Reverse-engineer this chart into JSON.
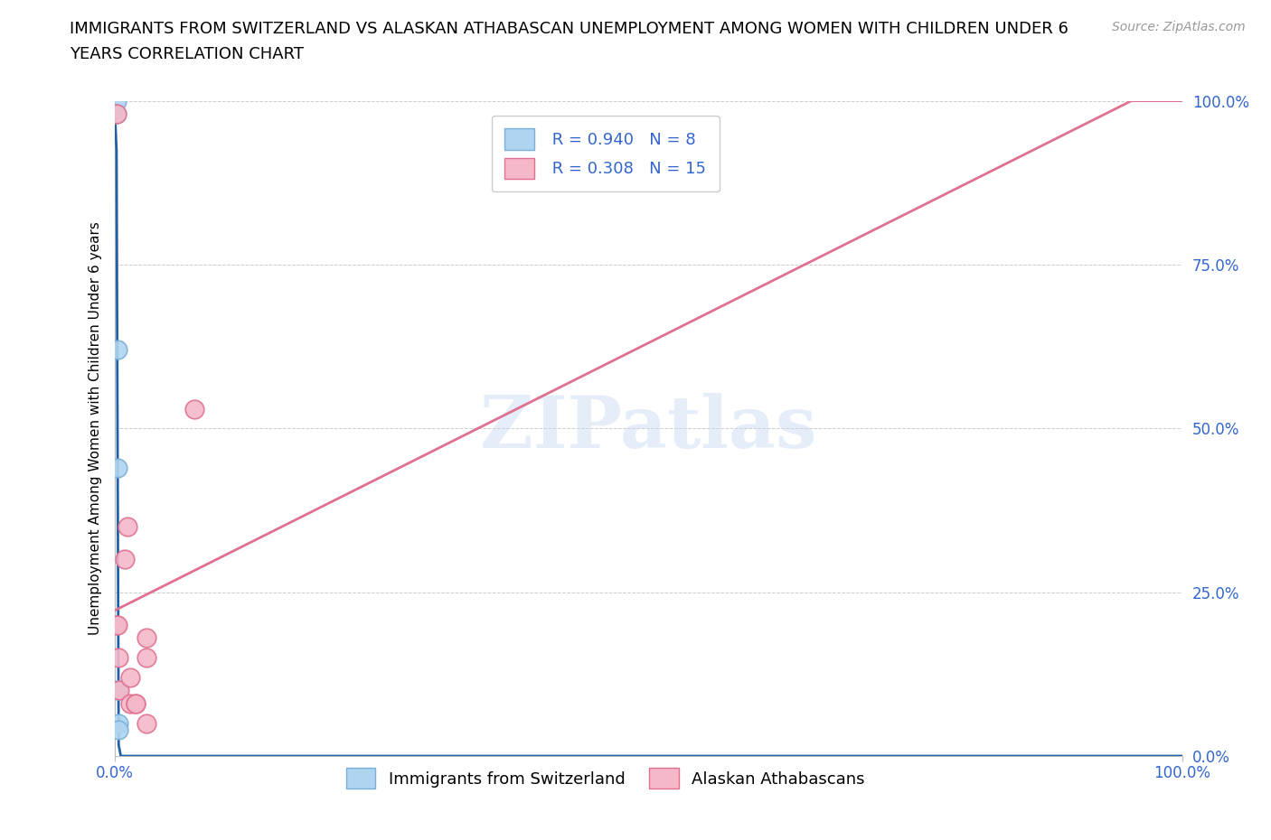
{
  "title_line1": "IMMIGRANTS FROM SWITZERLAND VS ALASKAN ATHABASCAN UNEMPLOYMENT AMONG WOMEN WITH CHILDREN UNDER 6",
  "title_line2": "YEARS CORRELATION CHART",
  "source_text": "Source: ZipAtlas.com",
  "ylabel": "Unemployment Among Women with Children Under 6 years",
  "swiss_R": 0.94,
  "swiss_N": 8,
  "athabascan_R": 0.308,
  "athabascan_N": 15,
  "swiss_color": "#aed4f0",
  "swiss_edge_color": "#7ab0d8",
  "swiss_line_color": "#2060a8",
  "athabascan_color": "#f4b8c8",
  "athabascan_edge_color": "#e07090",
  "athabascan_line_color": "#e07090",
  "swiss_x": [
    0.002,
    0.002,
    0.003,
    0.003,
    0.003,
    0.004,
    0.004,
    0.004
  ],
  "swiss_y": [
    1.0,
    0.98,
    0.62,
    0.44,
    0.1,
    0.1,
    0.05,
    0.04
  ],
  "athabascan_x": [
    0.001,
    0.002,
    0.003,
    0.004,
    0.005,
    0.01,
    0.012,
    0.015,
    0.015,
    0.02,
    0.02,
    0.03,
    0.03,
    0.075,
    0.03
  ],
  "athabascan_y": [
    0.2,
    0.98,
    0.2,
    0.15,
    0.1,
    0.3,
    0.35,
    0.12,
    0.08,
    0.08,
    0.08,
    0.18,
    0.15,
    0.53,
    0.05
  ],
  "xlim": [
    0.0,
    1.0
  ],
  "ylim": [
    0.0,
    1.0
  ],
  "xtick_vals": [
    0.0,
    1.0
  ],
  "xtick_labels": [
    "0.0%",
    "100.0%"
  ],
  "ytick_vals": [
    0.0,
    0.25,
    0.5,
    0.75,
    1.0
  ],
  "ytick_labels": [
    "0.0%",
    "25.0%",
    "50.0%",
    "75.0%",
    "100.0%"
  ],
  "background_color": "#ffffff",
  "grid_color": "#cccccc",
  "tick_color": "#3366cc",
  "title_fontsize": 13,
  "axis_label_fontsize": 11,
  "tick_fontsize": 12,
  "legend_fontsize": 13,
  "source_fontsize": 10
}
